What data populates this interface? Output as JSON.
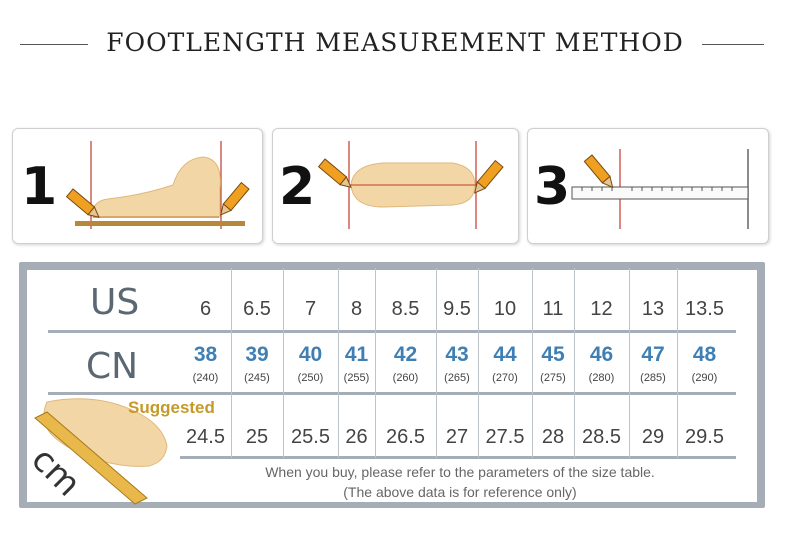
{
  "title": "FOOTLENGTH MEASUREMENT METHOD",
  "steps": [
    {
      "number": "1",
      "icon": "foot-side-measure-icon"
    },
    {
      "number": "2",
      "icon": "foot-top-measure-icon"
    },
    {
      "number": "3",
      "icon": "ruler-measure-icon"
    }
  ],
  "table": {
    "us_label": "US",
    "cn_label": "CN",
    "suggested_label": "Suggested",
    "cm_label": "cm",
    "us": [
      "6",
      "6.5",
      "7",
      "8",
      "8.5",
      "9.5",
      "10",
      "11",
      "12",
      "13",
      "13.5"
    ],
    "cn": [
      "38",
      "39",
      "40",
      "41",
      "42",
      "43",
      "44",
      "45",
      "46",
      "47",
      "48"
    ],
    "cn_mm": [
      "(240)",
      "(245)",
      "(250)",
      "(255)",
      "(260)",
      "(265)",
      "(270)",
      "(275)",
      "(280)",
      "(285)",
      "(290)"
    ],
    "cm": [
      "24.5",
      "25",
      "25.5",
      "26",
      "26.5",
      "27",
      "27.5",
      "28",
      "28.5",
      "29",
      "29.5"
    ],
    "note_line1": "When you buy, please refer to the parameters of the size table.",
    "note_line2": "(The above data is for reference only)"
  },
  "colors": {
    "frame": "#a5aeb6",
    "cn_number": "#3f7fb3",
    "suggested": "#c59a2b",
    "label_gray": "#5b6773"
  }
}
